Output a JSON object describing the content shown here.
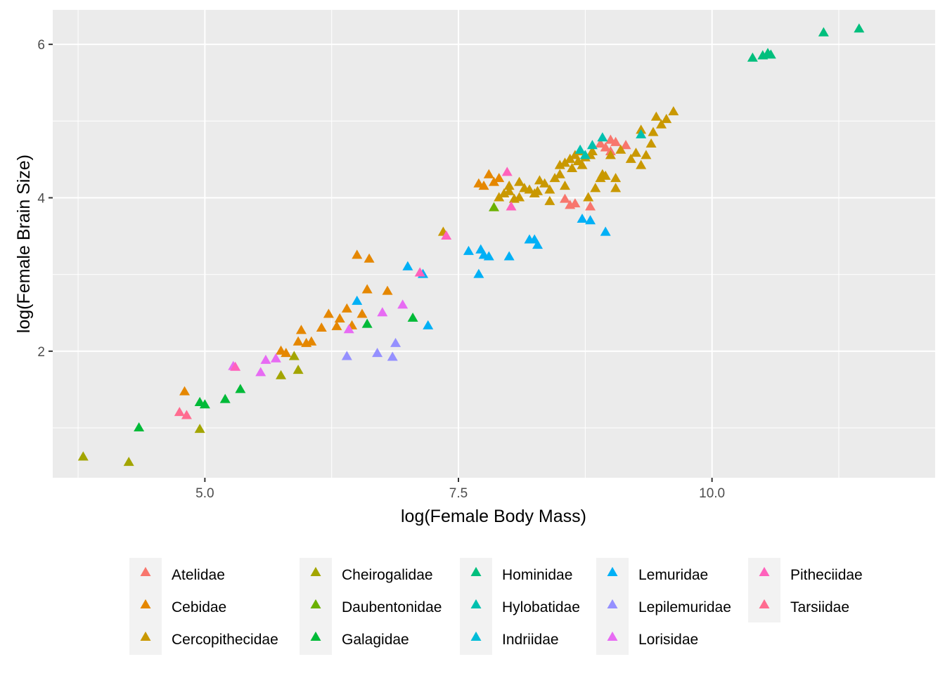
{
  "chart_data": {
    "type": "scatter",
    "title": "",
    "xlabel": "log(Female Body Mass)",
    "ylabel": "log(Female Brain Size)",
    "xlim": [
      3.5,
      12.2
    ],
    "ylim": [
      0.35,
      6.45
    ],
    "x_ticks": [
      5.0,
      7.5,
      10.0
    ],
    "x_tick_labels": [
      "5.0",
      "7.5",
      "10.0"
    ],
    "y_ticks": [
      2,
      4,
      6
    ],
    "y_tick_labels": [
      "2",
      "4",
      "6"
    ],
    "grid": true,
    "background": "#EBEBEB",
    "marker": "triangle",
    "legend_position": "bottom",
    "series": [
      {
        "name": "Atelidae",
        "color": "#F8766D",
        "points": [
          [
            8.55,
            3.98
          ],
          [
            8.6,
            3.9
          ],
          [
            8.65,
            3.92
          ],
          [
            8.8,
            3.88
          ],
          [
            8.9,
            4.7
          ],
          [
            9.0,
            4.75
          ],
          [
            9.05,
            4.72
          ],
          [
            9.15,
            4.68
          ],
          [
            9.0,
            4.6
          ],
          [
            8.95,
            4.65
          ]
        ]
      },
      {
        "name": "Cebidae",
        "color": "#E58700",
        "points": [
          [
            4.8,
            1.47
          ],
          [
            5.75,
            2.0
          ],
          [
            5.8,
            1.97
          ],
          [
            5.92,
            2.12
          ],
          [
            5.95,
            2.27
          ],
          [
            6.0,
            2.1
          ],
          [
            6.05,
            2.12
          ],
          [
            6.15,
            2.3
          ],
          [
            6.22,
            2.48
          ],
          [
            6.3,
            2.32
          ],
          [
            6.33,
            2.42
          ],
          [
            6.4,
            2.55
          ],
          [
            6.45,
            2.33
          ],
          [
            6.5,
            3.25
          ],
          [
            6.55,
            2.48
          ],
          [
            6.6,
            2.8
          ],
          [
            6.62,
            3.2
          ],
          [
            6.8,
            2.78
          ],
          [
            7.7,
            4.18
          ],
          [
            7.75,
            4.15
          ],
          [
            7.8,
            4.3
          ],
          [
            7.85,
            4.2
          ],
          [
            7.9,
            4.25
          ]
        ]
      },
      {
        "name": "Cercopithecidae",
        "color": "#C99800",
        "points": [
          [
            7.35,
            3.55
          ],
          [
            7.9,
            4.0
          ],
          [
            7.95,
            4.05
          ],
          [
            8.0,
            4.08
          ],
          [
            8.05,
            3.98
          ],
          [
            8.1,
            4.2
          ],
          [
            8.15,
            4.12
          ],
          [
            8.2,
            4.1
          ],
          [
            8.25,
            4.05
          ],
          [
            8.3,
            4.22
          ],
          [
            8.35,
            4.18
          ],
          [
            8.4,
            4.1
          ],
          [
            8.45,
            4.25
          ],
          [
            8.5,
            4.3
          ],
          [
            8.55,
            4.15
          ],
          [
            8.55,
            4.45
          ],
          [
            8.6,
            4.5
          ],
          [
            8.62,
            4.38
          ],
          [
            8.65,
            4.55
          ],
          [
            8.68,
            4.47
          ],
          [
            8.7,
            4.6
          ],
          [
            8.72,
            4.42
          ],
          [
            8.75,
            4.52
          ],
          [
            8.78,
            4.0
          ],
          [
            8.8,
            4.55
          ],
          [
            8.82,
            4.6
          ],
          [
            8.85,
            4.12
          ],
          [
            8.9,
            4.25
          ],
          [
            8.92,
            4.3
          ],
          [
            8.95,
            4.28
          ],
          [
            9.0,
            4.55
          ],
          [
            9.05,
            4.25
          ],
          [
            9.1,
            4.62
          ],
          [
            9.2,
            4.5
          ],
          [
            9.25,
            4.58
          ],
          [
            9.3,
            4.88
          ],
          [
            9.35,
            4.55
          ],
          [
            9.4,
            4.7
          ],
          [
            9.42,
            4.85
          ],
          [
            9.45,
            5.05
          ],
          [
            9.5,
            4.95
          ],
          [
            9.55,
            5.02
          ],
          [
            9.62,
            5.12
          ],
          [
            8.0,
            4.15
          ],
          [
            8.1,
            4.0
          ],
          [
            8.28,
            4.08
          ],
          [
            8.4,
            3.95
          ],
          [
            8.5,
            4.42
          ],
          [
            9.05,
            4.12
          ],
          [
            9.3,
            4.42
          ]
        ]
      },
      {
        "name": "Cheirogalidae",
        "color": "#A3A500",
        "points": [
          [
            3.8,
            0.62
          ],
          [
            4.25,
            0.55
          ],
          [
            4.95,
            0.98
          ],
          [
            5.75,
            1.68
          ],
          [
            5.88,
            1.93
          ],
          [
            5.92,
            1.75
          ]
        ]
      },
      {
        "name": "Daubentonidae",
        "color": "#6BB100",
        "points": [
          [
            7.85,
            3.87
          ]
        ]
      },
      {
        "name": "Galagidae",
        "color": "#00BA38",
        "points": [
          [
            4.35,
            1.0
          ],
          [
            4.95,
            1.33
          ],
          [
            5.0,
            1.3
          ],
          [
            5.2,
            1.37
          ],
          [
            5.35,
            1.5
          ],
          [
            6.6,
            2.35
          ],
          [
            7.05,
            2.43
          ]
        ]
      },
      {
        "name": "Hominidae",
        "color": "#00BF7D",
        "points": [
          [
            10.4,
            5.82
          ],
          [
            10.5,
            5.85
          ],
          [
            10.55,
            5.88
          ],
          [
            10.58,
            5.86
          ],
          [
            11.1,
            6.15
          ],
          [
            11.45,
            6.2
          ]
        ]
      },
      {
        "name": "Hylobatidae",
        "color": "#00C0AF",
        "points": [
          [
            8.7,
            4.62
          ],
          [
            8.75,
            4.55
          ],
          [
            8.82,
            4.68
          ],
          [
            8.92,
            4.78
          ],
          [
            9.3,
            4.82
          ]
        ]
      },
      {
        "name": "Indriidae",
        "color": "#00BCD8",
        "points": []
      },
      {
        "name": "Lemuridae",
        "color": "#00B0F6",
        "points": [
          [
            6.5,
            2.65
          ],
          [
            7.0,
            3.1
          ],
          [
            7.15,
            3.0
          ],
          [
            7.2,
            2.33
          ],
          [
            7.6,
            3.3
          ],
          [
            7.7,
            3.0
          ],
          [
            7.72,
            3.32
          ],
          [
            7.75,
            3.25
          ],
          [
            7.8,
            3.23
          ],
          [
            8.0,
            3.23
          ],
          [
            8.2,
            3.45
          ],
          [
            8.25,
            3.45
          ],
          [
            8.28,
            3.38
          ],
          [
            8.72,
            3.72
          ],
          [
            8.8,
            3.7
          ],
          [
            8.95,
            3.55
          ]
        ]
      },
      {
        "name": "Lepilemuridae",
        "color": "#9590FF",
        "points": [
          [
            6.4,
            1.93
          ],
          [
            6.7,
            1.97
          ],
          [
            6.85,
            1.92
          ],
          [
            6.88,
            2.1
          ]
        ]
      },
      {
        "name": "Lorisidae",
        "color": "#E76BF3",
        "points": [
          [
            5.28,
            1.8
          ],
          [
            5.55,
            1.72
          ],
          [
            5.6,
            1.88
          ],
          [
            5.7,
            1.9
          ],
          [
            6.42,
            2.28
          ],
          [
            6.75,
            2.5
          ],
          [
            6.95,
            2.6
          ]
        ]
      },
      {
        "name": "Pitheciidae",
        "color": "#FF62BC",
        "points": [
          [
            5.3,
            1.79
          ],
          [
            7.12,
            3.02
          ],
          [
            7.38,
            3.5
          ],
          [
            7.98,
            4.33
          ],
          [
            8.02,
            3.88
          ]
        ]
      },
      {
        "name": "Tarsiidae",
        "color": "#FF6C90",
        "points": [
          [
            4.75,
            1.2
          ],
          [
            4.82,
            1.16
          ]
        ]
      }
    ]
  },
  "legend": {
    "items": [
      {
        "label": "Atelidae",
        "color": "#F8766D"
      },
      {
        "label": "Cebidae",
        "color": "#E58700"
      },
      {
        "label": "Cercopithecidae",
        "color": "#C99800"
      },
      {
        "label": "Cheirogalidae",
        "color": "#A3A500"
      },
      {
        "label": "Daubentonidae",
        "color": "#6BB100"
      },
      {
        "label": "Galagidae",
        "color": "#00BA38"
      },
      {
        "label": "Hominidae",
        "color": "#00BF7D"
      },
      {
        "label": "Hylobatidae",
        "color": "#00C0AF"
      },
      {
        "label": "Indriidae",
        "color": "#00BCD8"
      },
      {
        "label": "Lemuridae",
        "color": "#00B0F6"
      },
      {
        "label": "Lepilemuridae",
        "color": "#9590FF"
      },
      {
        "label": "Lorisidae",
        "color": "#E76BF3"
      },
      {
        "label": "Pitheciidae",
        "color": "#FF62BC"
      },
      {
        "label": "Tarsiidae",
        "color": "#FF6C90"
      }
    ]
  }
}
